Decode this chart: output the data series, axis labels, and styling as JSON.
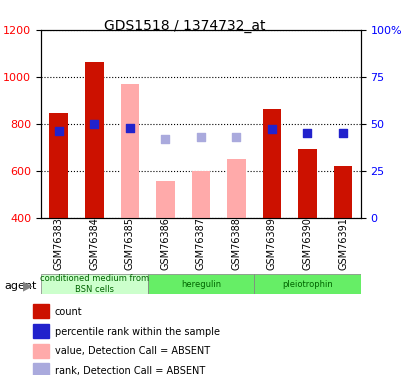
{
  "title": "GDS1518 / 1374732_at",
  "samples": [
    "GSM76383",
    "GSM76384",
    "GSM76385",
    "GSM76386",
    "GSM76387",
    "GSM76388",
    "GSM76389",
    "GSM76390",
    "GSM76391"
  ],
  "bar_values": [
    848,
    1065,
    null,
    null,
    null,
    null,
    862,
    693,
    619
  ],
  "bar_absent_values": [
    null,
    null,
    970,
    554,
    597,
    648,
    null,
    null,
    null
  ],
  "rank_values": [
    46,
    50,
    48,
    null,
    null,
    null,
    47,
    45,
    45
  ],
  "rank_absent_values": [
    null,
    null,
    null,
    42,
    43,
    43,
    null,
    null,
    null
  ],
  "ylim_left": [
    400,
    1200
  ],
  "ylim_right": [
    0,
    100
  ],
  "yticks_left": [
    400,
    600,
    800,
    1000,
    1200
  ],
  "yticks_right": [
    0,
    25,
    50,
    75,
    100
  ],
  "bar_color": "#cc1100",
  "bar_absent_color": "#ffaaaa",
  "rank_color": "#2222cc",
  "rank_absent_color": "#aaaadd",
  "agent_groups": [
    {
      "label": "conditioned medium from\nBSN cells",
      "start": 0,
      "end": 3,
      "color": "#ccffcc"
    },
    {
      "label": "heregulin",
      "start": 3,
      "end": 6,
      "color": "#66ee66"
    },
    {
      "label": "pleiotrophin",
      "start": 6,
      "end": 9,
      "color": "#66ee66"
    }
  ],
  "legend_items": [
    {
      "label": "count",
      "color": "#cc1100",
      "marker": "s"
    },
    {
      "label": "percentile rank within the sample",
      "color": "#2222cc",
      "marker": "s"
    },
    {
      "label": "value, Detection Call = ABSENT",
      "color": "#ffaaaa",
      "marker": "s"
    },
    {
      "label": "rank, Detection Call = ABSENT",
      "color": "#aaaadd",
      "marker": "s"
    }
  ],
  "xlabel": "",
  "ylabel_left": "",
  "ylabel_right": ""
}
